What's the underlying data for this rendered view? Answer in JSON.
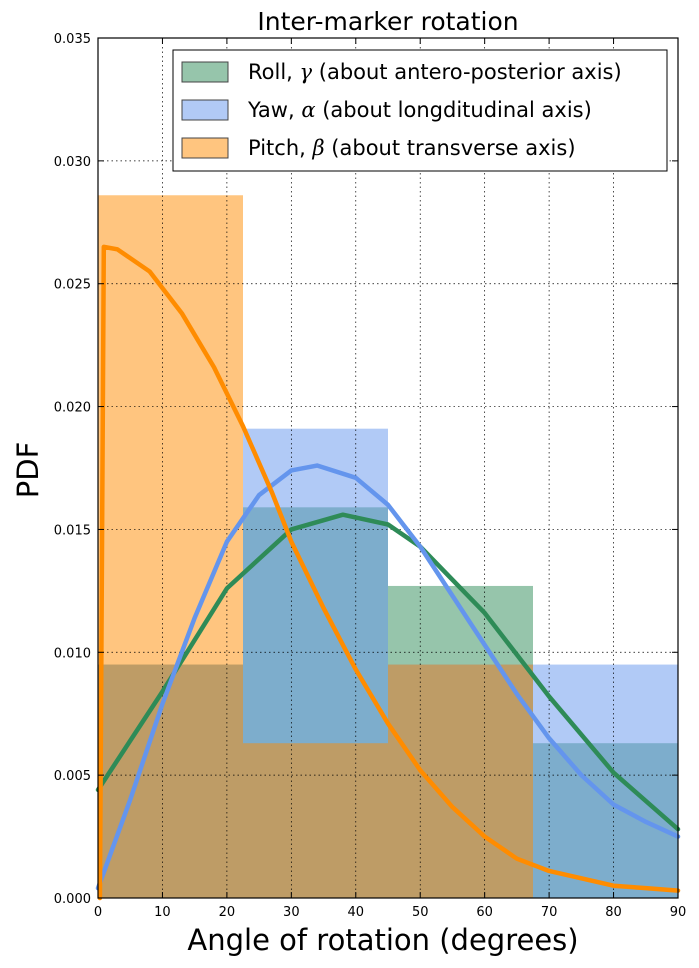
{
  "chart_data": {
    "type": "bar",
    "title": "Inter-marker rotation",
    "xlabel": "Angle of rotation (degrees)",
    "ylabel": "PDF",
    "xlim": [
      0,
      90
    ],
    "ylim": [
      0,
      0.035
    ],
    "x_ticks": [
      "0",
      "10",
      "20",
      "30",
      "40",
      "50",
      "60",
      "70",
      "80",
      "90"
    ],
    "y_ticks": [
      "0.000",
      "0.005",
      "0.010",
      "0.015",
      "0.020",
      "0.025",
      "0.030",
      "0.035"
    ],
    "grid": true,
    "legend_position": "top-right",
    "bin_edges": [
      0,
      22.5,
      45,
      67.5,
      90
    ],
    "series": [
      {
        "name": "Roll, γ (about antero-posterior axis)",
        "name_prefix": "Roll, ",
        "greek": "γ",
        "name_suffix": " (about antero-posterior axis)",
        "color": "#2e8b57",
        "hist_values": [
          0.0095,
          0.0159,
          0.0127,
          0.0063
        ],
        "curve": [
          [
            0,
            0.0044
          ],
          [
            10,
            0.0084
          ],
          [
            20,
            0.0126
          ],
          [
            30,
            0.015
          ],
          [
            38,
            0.0156
          ],
          [
            45,
            0.0152
          ],
          [
            50,
            0.0143
          ],
          [
            60,
            0.0116
          ],
          [
            70,
            0.0082
          ],
          [
            80,
            0.0051
          ],
          [
            90,
            0.0028
          ]
        ]
      },
      {
        "name": "Yaw, α (about longditudinal axis)",
        "name_prefix": "Yaw, ",
        "greek": "α",
        "name_suffix": " (about longditudinal axis)",
        "color": "#6495ed",
        "hist_values": [
          0.0095,
          0.0191,
          0.0095,
          0.0095
        ],
        "curve": [
          [
            0,
            0.0004
          ],
          [
            5,
            0.004
          ],
          [
            10,
            0.0079
          ],
          [
            15,
            0.0114
          ],
          [
            20,
            0.0145
          ],
          [
            25,
            0.0164
          ],
          [
            30,
            0.0174
          ],
          [
            34,
            0.0176
          ],
          [
            40,
            0.0171
          ],
          [
            45,
            0.016
          ],
          [
            50,
            0.0143
          ],
          [
            55,
            0.0123
          ],
          [
            60,
            0.0103
          ],
          [
            65,
            0.0083
          ],
          [
            70,
            0.0065
          ],
          [
            75,
            0.005
          ],
          [
            80,
            0.0038
          ],
          [
            85,
            0.0031
          ],
          [
            90,
            0.0025
          ]
        ]
      },
      {
        "name": "Pitch, β (about transverse axis)",
        "name_prefix": "Pitch, ",
        "greek": "β",
        "name_suffix": " (about transverse axis)",
        "color": "#ff8c00",
        "hist_values": [
          0.0286,
          0.0063,
          0.0095,
          0.0
        ],
        "curve": [
          [
            0.3,
            0.0
          ],
          [
            0.9,
            0.0265
          ],
          [
            3,
            0.0264
          ],
          [
            8,
            0.0255
          ],
          [
            13,
            0.0238
          ],
          [
            18,
            0.0216
          ],
          [
            22.5,
            0.0192
          ],
          [
            27,
            0.0165
          ],
          [
            30,
            0.0145
          ],
          [
            35,
            0.0118
          ],
          [
            40,
            0.0093
          ],
          [
            45,
            0.0071
          ],
          [
            50,
            0.0052
          ],
          [
            55,
            0.0037
          ],
          [
            60,
            0.0025
          ],
          [
            65,
            0.0016
          ],
          [
            70,
            0.0011
          ],
          [
            75,
            0.0008
          ],
          [
            80,
            0.0005
          ],
          [
            85,
            0.0004
          ],
          [
            90,
            0.0003
          ]
        ]
      }
    ]
  }
}
